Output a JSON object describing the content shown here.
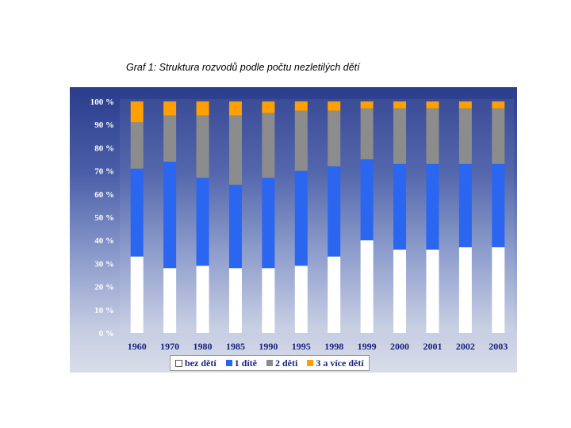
{
  "caption": "Graf 1: Struktura rozvodů podle počtu nezletilých dětí",
  "chart_data": {
    "type": "bar",
    "stacked": true,
    "categories": [
      "1960",
      "1970",
      "1980",
      "1985",
      "1990",
      "1995",
      "1998",
      "1999",
      "2000",
      "2001",
      "2002",
      "2003"
    ],
    "series": [
      {
        "name": "bez dětí",
        "color": "#ffffff",
        "values": [
          33,
          28,
          29,
          28,
          28,
          29,
          33,
          40,
          36,
          36,
          37,
          37
        ]
      },
      {
        "name": "1 dítě",
        "color": "#2b66f0",
        "values": [
          38,
          46,
          38,
          36,
          39,
          41,
          39,
          35,
          37,
          37,
          36,
          36
        ]
      },
      {
        "name": "2 děti",
        "color": "#8c8c8c",
        "values": [
          20,
          20,
          27,
          30,
          28,
          26,
          24,
          22,
          24,
          24,
          24,
          24
        ]
      },
      {
        "name": "3 a více dětí",
        "color": "#ffa000",
        "values": [
          9,
          6,
          6,
          6,
          5,
          4,
          4,
          3,
          3,
          3,
          3,
          3
        ]
      }
    ],
    "y_ticks": [
      "0 %",
      "10 %",
      "20 %",
      "30 %",
      "40 %",
      "50 %",
      "60 %",
      "70 %",
      "80 %",
      "90 %",
      "100 %"
    ],
    "ylim": [
      0,
      100
    ],
    "grid": false,
    "legend_position": "bottom"
  }
}
